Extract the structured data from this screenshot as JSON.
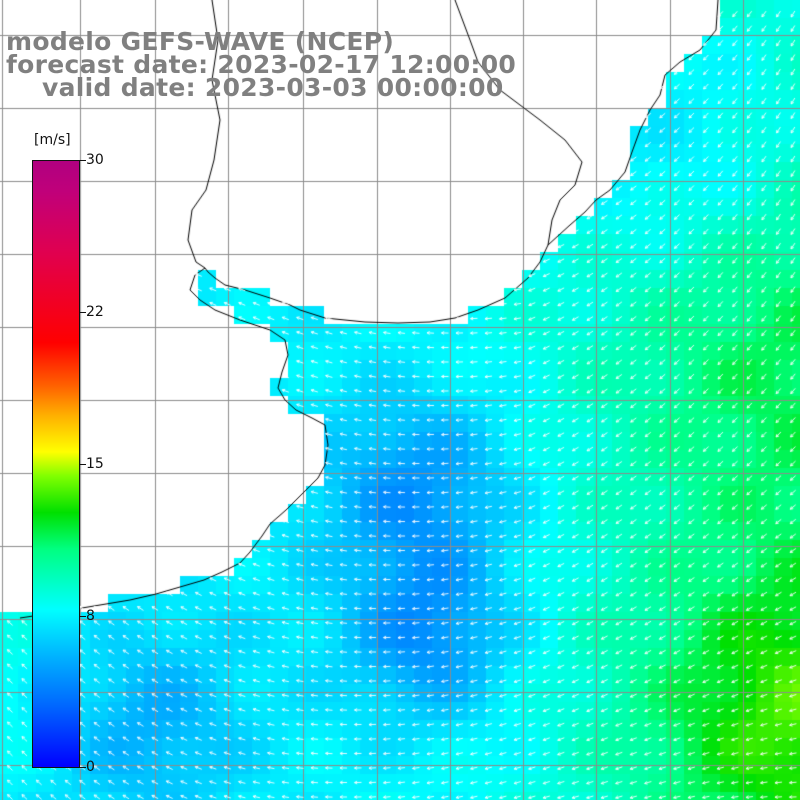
{
  "header": {
    "model_line": "modelo GEFS-WAVE (NCEP)",
    "forecast_line": "forecast date: 2023-02-17 12:00:00",
    "valid_line": "valid date: 2023-03-03 00:00:00"
  },
  "colorbar": {
    "unit": "[m/s]",
    "ticks": [
      {
        "label": "30",
        "value": 30
      },
      {
        "label": "22",
        "value": 22
      },
      {
        "label": "15",
        "value": 15
      },
      {
        "label": "8",
        "value": 8
      },
      {
        "label": "0",
        "value": 0
      }
    ],
    "range": [
      0,
      30
    ]
  },
  "map": {
    "variable": "wind speed",
    "units": "m/s",
    "land_color": "#ffffff",
    "graticule_color": "#8c8c8c",
    "coastline_color": "#000000",
    "arrow_color": "#ffffff"
  }
}
